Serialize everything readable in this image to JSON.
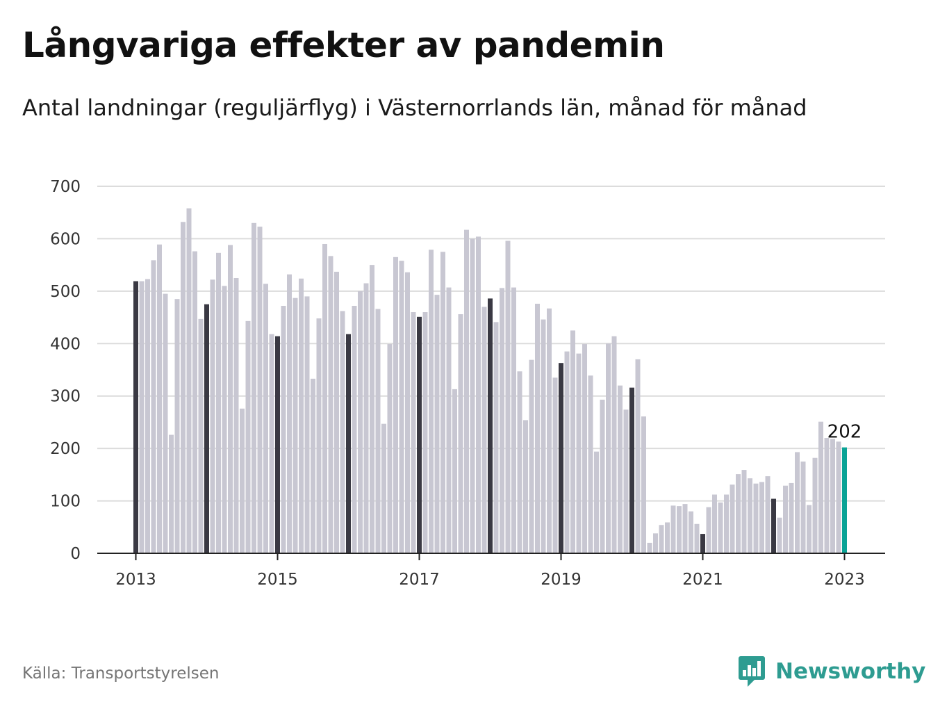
{
  "header": {
    "title": "Långvariga effekter av pandemin",
    "subtitle": "Antal landningar (reguljärflyg) i Västernorrlands län, månad för månad"
  },
  "footer": {
    "source": "Källa: Transportstyrelsen",
    "brand": "Newsworthy"
  },
  "colors": {
    "bar": "#c8c7d2",
    "january_bar": "#3a3943",
    "latest_bar": "#0aa396",
    "grid": "#dcdcdc",
    "axis": "#222222",
    "brand": "#2e9c91"
  },
  "chart_data": {
    "type": "bar",
    "title": "Långvariga effekter av pandemin",
    "subtitle": "Antal landningar (reguljärflyg) i Västernorrlands län, månad för månad",
    "xlabel": "",
    "ylabel": "",
    "ylim": [
      0,
      700
    ],
    "yticks": [
      "0",
      "100",
      "200",
      "300",
      "400",
      "500",
      "600",
      "700"
    ],
    "xticks": [
      "2013",
      "2015",
      "2017",
      "2019",
      "2021",
      "2023"
    ],
    "start": "2013-01",
    "end": "2023-01",
    "grid": true,
    "highlight": "January of each year shown in dark, latest month in teal",
    "latest_label": "202",
    "values": [
      519,
      519,
      523,
      559,
      589,
      495,
      226,
      485,
      632,
      658,
      576,
      447,
      475,
      522,
      573,
      510,
      588,
      525,
      276,
      443,
      630,
      623,
      514,
      418,
      414,
      472,
      532,
      487,
      524,
      490,
      333,
      448,
      590,
      567,
      537,
      462,
      418,
      472,
      500,
      515,
      550,
      466,
      247,
      399,
      565,
      558,
      536,
      460,
      451,
      460,
      579,
      493,
      575,
      507,
      313,
      456,
      617,
      600,
      604,
      470,
      486,
      441,
      506,
      596,
      507,
      347,
      254,
      369,
      476,
      446,
      467,
      335,
      363,
      385,
      425,
      381,
      399,
      339,
      194,
      293,
      400,
      414,
      320,
      274,
      316,
      370,
      261,
      20,
      38,
      54,
      59,
      91,
      90,
      94,
      80,
      56,
      37,
      88,
      112,
      97,
      112,
      131,
      151,
      159,
      143,
      133,
      136,
      147,
      104,
      68,
      129,
      134,
      193,
      175,
      92,
      182,
      251,
      220,
      218,
      213,
      202
    ]
  }
}
